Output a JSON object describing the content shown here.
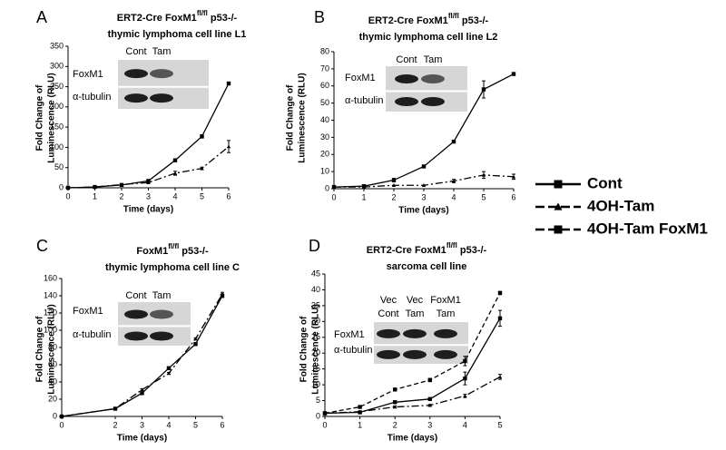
{
  "chart_data": [
    {
      "type": "line",
      "panel": "A",
      "title": [
        [
          "ERT2-Cre  FoxM1",
          "fl/fl",
          "  p53-/-"
        ],
        [
          "thymic lymphoma cell line  L1"
        ]
      ],
      "xlabel": "Time (days)",
      "ylabel": [
        "Fold Change of",
        "Luminescence (RLU)"
      ],
      "inset": {
        "columns": [
          [
            "Cont"
          ],
          [
            "Tam"
          ]
        ],
        "rows": [
          "FoxM1",
          "α-tubulin"
        ]
      },
      "x": [
        0,
        1,
        2,
        3,
        4,
        5,
        6
      ],
      "xlim": [
        0,
        6
      ],
      "xticks": [
        0,
        1,
        2,
        3,
        4,
        5,
        6
      ],
      "ylim": [
        0,
        350
      ],
      "yticks": [
        0,
        50,
        100,
        150,
        200,
        250,
        300,
        350
      ],
      "series": [
        {
          "name": "Cont",
          "color": "#000000",
          "dash": "solid",
          "marker": "square",
          "values": [
            0,
            2,
            7,
            17,
            68,
            127,
            258
          ],
          "errors": [
            0,
            0,
            0,
            0,
            2,
            4,
            2
          ]
        },
        {
          "name": "4OH-Tam",
          "color": "#000000",
          "dash": "dash-dot",
          "marker": "triangle",
          "values": [
            0,
            2,
            8,
            13,
            36,
            48,
            102
          ],
          "errors": [
            0,
            0,
            0,
            2,
            5,
            3,
            15
          ]
        }
      ]
    },
    {
      "type": "line",
      "panel": "B",
      "title": [
        [
          "ERT2-Cre  FoxM1",
          "fl/fl",
          "  p53-/-"
        ],
        [
          "thymic lymphoma cell line  L2"
        ]
      ],
      "xlabel": "Time (days)",
      "ylabel": [
        "Fold Change of",
        "Luminescence (RLU)"
      ],
      "inset": {
        "columns": [
          [
            "Cont"
          ],
          [
            "Tam"
          ]
        ],
        "rows": [
          "FoxM1",
          "α-tubulin"
        ]
      },
      "x": [
        0,
        1,
        2,
        3,
        4,
        5,
        6
      ],
      "xlim": [
        0,
        6
      ],
      "xticks": [
        0,
        1,
        2,
        3,
        4,
        5,
        6
      ],
      "ylim": [
        0,
        80
      ],
      "yticks": [
        0,
        10,
        20,
        30,
        40,
        50,
        60,
        70,
        80
      ],
      "series": [
        {
          "name": "Cont",
          "color": "#000000",
          "dash": "solid",
          "marker": "square",
          "values": [
            1,
            1.5,
            5,
            13,
            27.5,
            58,
            67
          ],
          "errors": [
            0,
            0,
            1,
            0,
            0,
            5,
            0.5
          ]
        },
        {
          "name": "4OH-Tam",
          "color": "#000000",
          "dash": "dash-dot",
          "marker": "triangle",
          "values": [
            1,
            1,
            2,
            2,
            4.5,
            8,
            7
          ],
          "errors": [
            0,
            0,
            0,
            0,
            1,
            2,
            1.5
          ]
        }
      ]
    },
    {
      "type": "line",
      "panel": "C",
      "title": [
        [
          "FoxM1",
          "fl/fl",
          "  p53-/-"
        ],
        [
          "thymic lymphoma cell line C"
        ]
      ],
      "xlabel": "Time (days)",
      "ylabel": [
        "Fold Change of",
        "Luminescence (RLU)"
      ],
      "inset": {
        "columns": [
          [
            "Cont"
          ],
          [
            "Tam"
          ]
        ],
        "rows": [
          "FoxM1",
          "α-tubulin"
        ]
      },
      "x": [
        0,
        2,
        3,
        4,
        5,
        6
      ],
      "xlim": [
        0,
        6
      ],
      "xticks": [
        0,
        2,
        3,
        4,
        5,
        6
      ],
      "ylim": [
        0,
        160
      ],
      "yticks": [
        0,
        20,
        40,
        60,
        80,
        100,
        120,
        140,
        160
      ],
      "series": [
        {
          "name": "Cont",
          "color": "#000000",
          "dash": "solid",
          "marker": "square",
          "values": [
            0,
            9,
            27,
            56,
            84,
            140
          ],
          "errors": [
            0,
            0,
            1,
            1,
            1,
            2
          ]
        },
        {
          "name": "4OH-Tam",
          "color": "#000000",
          "dash": "dash-dot",
          "marker": "triangle",
          "values": [
            0,
            9,
            31,
            50,
            90,
            142
          ],
          "errors": [
            0,
            0,
            1,
            1,
            1,
            2
          ]
        }
      ]
    },
    {
      "type": "line",
      "panel": "D",
      "title": [
        [
          "ERT2-Cre  FoxM1",
          "fl/fl",
          "  p53-/-"
        ],
        [
          "sarcoma cell line"
        ]
      ],
      "xlabel": "Time (days)",
      "ylabel": [
        "Fold Change of",
        "Luminescence (RLU)"
      ],
      "inset": {
        "columns": [
          [
            "Vec",
            "Cont"
          ],
          [
            "Vec",
            "Tam"
          ],
          [
            "FoxM1",
            "Tam"
          ]
        ],
        "rows": [
          "FoxM1",
          "α-tubulin"
        ]
      },
      "x": [
        0,
        1,
        2,
        3,
        4,
        5
      ],
      "xlim": [
        0,
        5
      ],
      "xticks": [
        0,
        1,
        2,
        3,
        4,
        5
      ],
      "ylim": [
        0,
        45
      ],
      "yticks": [
        0,
        5,
        10,
        15,
        20,
        25,
        30,
        35,
        40,
        45
      ],
      "series": [
        {
          "name": "Cont",
          "color": "#000000",
          "dash": "solid",
          "marker": "square",
          "values": [
            1,
            1.3,
            4.5,
            5.5,
            12,
            31
          ],
          "errors": [
            0,
            0,
            0.3,
            0.3,
            2,
            2.5
          ]
        },
        {
          "name": "4OH-Tam",
          "color": "#000000",
          "dash": "dash-dot",
          "marker": "triangle",
          "values": [
            1,
            1.5,
            3,
            3.5,
            6.5,
            12.5
          ],
          "errors": [
            0,
            0,
            0.3,
            0.3,
            0.5,
            0.8
          ]
        },
        {
          "name": "4OH-Tam FoxM1",
          "color": "#000000",
          "dash": "dashed",
          "marker": "square",
          "values": [
            1,
            3,
            8.5,
            11.5,
            17.5,
            39
          ],
          "errors": [
            0,
            0.3,
            0.3,
            0.5,
            1.5,
            0.5
          ]
        }
      ]
    }
  ]
}
